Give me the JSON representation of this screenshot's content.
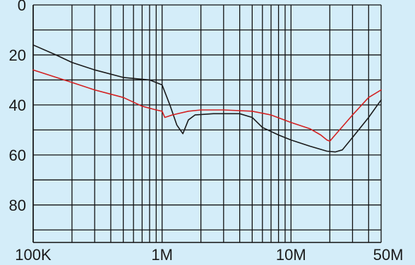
{
  "chart_data": {
    "type": "line",
    "x_scale": "log",
    "xlim": [
      100000,
      50000000
    ],
    "ylim": [
      0,
      95
    ],
    "y_inverted": true,
    "grid": true,
    "x_tick_labels": [
      {
        "value": 100000,
        "label": "100K"
      },
      {
        "value": 1000000,
        "label": "1M"
      },
      {
        "value": 10000000,
        "label": "10M"
      },
      {
        "value": 50000000,
        "label": "50M"
      }
    ],
    "y_tick_labels": [
      {
        "value": 0,
        "label": "0"
      },
      {
        "value": 20,
        "label": "20"
      },
      {
        "value": 40,
        "label": "40"
      },
      {
        "value": 60,
        "label": "60"
      },
      {
        "value": 80,
        "label": "80"
      }
    ],
    "series": [
      {
        "color": "#1a1a1a",
        "points": [
          [
            100000,
            16
          ],
          [
            150000,
            20
          ],
          [
            200000,
            23
          ],
          [
            300000,
            26
          ],
          [
            500000,
            29
          ],
          [
            800000,
            30
          ],
          [
            1000000,
            32
          ],
          [
            1150000,
            40
          ],
          [
            1300000,
            48
          ],
          [
            1450000,
            51.5
          ],
          [
            1600000,
            46
          ],
          [
            1800000,
            44
          ],
          [
            2500000,
            43.5
          ],
          [
            4000000,
            43.5
          ],
          [
            5000000,
            45
          ],
          [
            6000000,
            49
          ],
          [
            8000000,
            52
          ],
          [
            10000000,
            54
          ],
          [
            14000000,
            56.5
          ],
          [
            19000000,
            58.5
          ],
          [
            22000000,
            58.8
          ],
          [
            25000000,
            58
          ],
          [
            30000000,
            53
          ],
          [
            40000000,
            45
          ],
          [
            50000000,
            38
          ]
        ]
      },
      {
        "color": "#d32121",
        "points": [
          [
            100000,
            26
          ],
          [
            200000,
            31
          ],
          [
            300000,
            34
          ],
          [
            500000,
            37
          ],
          [
            700000,
            40.5
          ],
          [
            900000,
            42
          ],
          [
            1000000,
            42.5
          ],
          [
            1050000,
            45
          ],
          [
            1200000,
            44
          ],
          [
            1600000,
            42.5
          ],
          [
            2000000,
            42
          ],
          [
            3000000,
            42
          ],
          [
            5000000,
            42.5
          ],
          [
            7000000,
            44
          ],
          [
            10000000,
            47
          ],
          [
            14000000,
            49.5
          ],
          [
            17000000,
            52
          ],
          [
            19000000,
            54
          ],
          [
            20000000,
            54.5
          ],
          [
            22000000,
            52
          ],
          [
            30000000,
            44
          ],
          [
            40000000,
            37
          ],
          [
            50000000,
            34
          ]
        ]
      }
    ]
  }
}
